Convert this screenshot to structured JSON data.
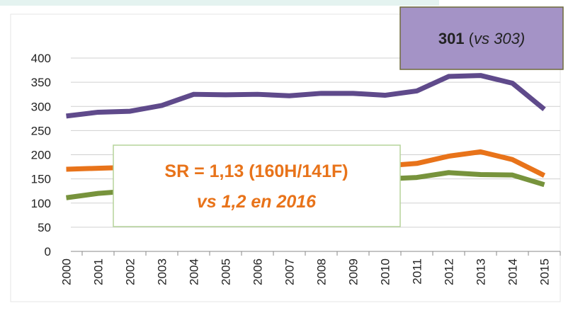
{
  "chart_data": {
    "type": "line",
    "categories": [
      "2000",
      "2001",
      "2002",
      "2003",
      "2004",
      "2005",
      "2006",
      "2007",
      "2008",
      "2009",
      "2010",
      "2011",
      "2012",
      "2013",
      "2014",
      "2015"
    ],
    "series": [
      {
        "color": "#5f4a8b",
        "values": [
          280,
          288,
          290,
          302,
          325,
          324,
          325,
          322,
          327,
          327,
          323,
          332,
          362,
          364,
          348,
          294
        ]
      },
      {
        "color": "#e8731a",
        "values": [
          170,
          172,
          174,
          176,
          178,
          178,
          177,
          176,
          176,
          176,
          177,
          182,
          197,
          206,
          190,
          157
        ]
      },
      {
        "color": "#77933c",
        "values": [
          111,
          120,
          125,
          130,
          135,
          140,
          142,
          145,
          147,
          148,
          150,
          153,
          163,
          159,
          158,
          138
        ]
      }
    ],
    "ylim": [
      0,
      400
    ],
    "yticks": [
      0,
      50,
      100,
      150,
      200,
      250,
      300,
      350,
      400
    ],
    "grid": true,
    "annotations": [
      {
        "parts": [
          "301",
          "(",
          "vs 303)"
        ]
      },
      {
        "lines": [
          "SR = 1,13 (160H/141F)",
          "vs 1,2 en 2016"
        ]
      }
    ]
  }
}
